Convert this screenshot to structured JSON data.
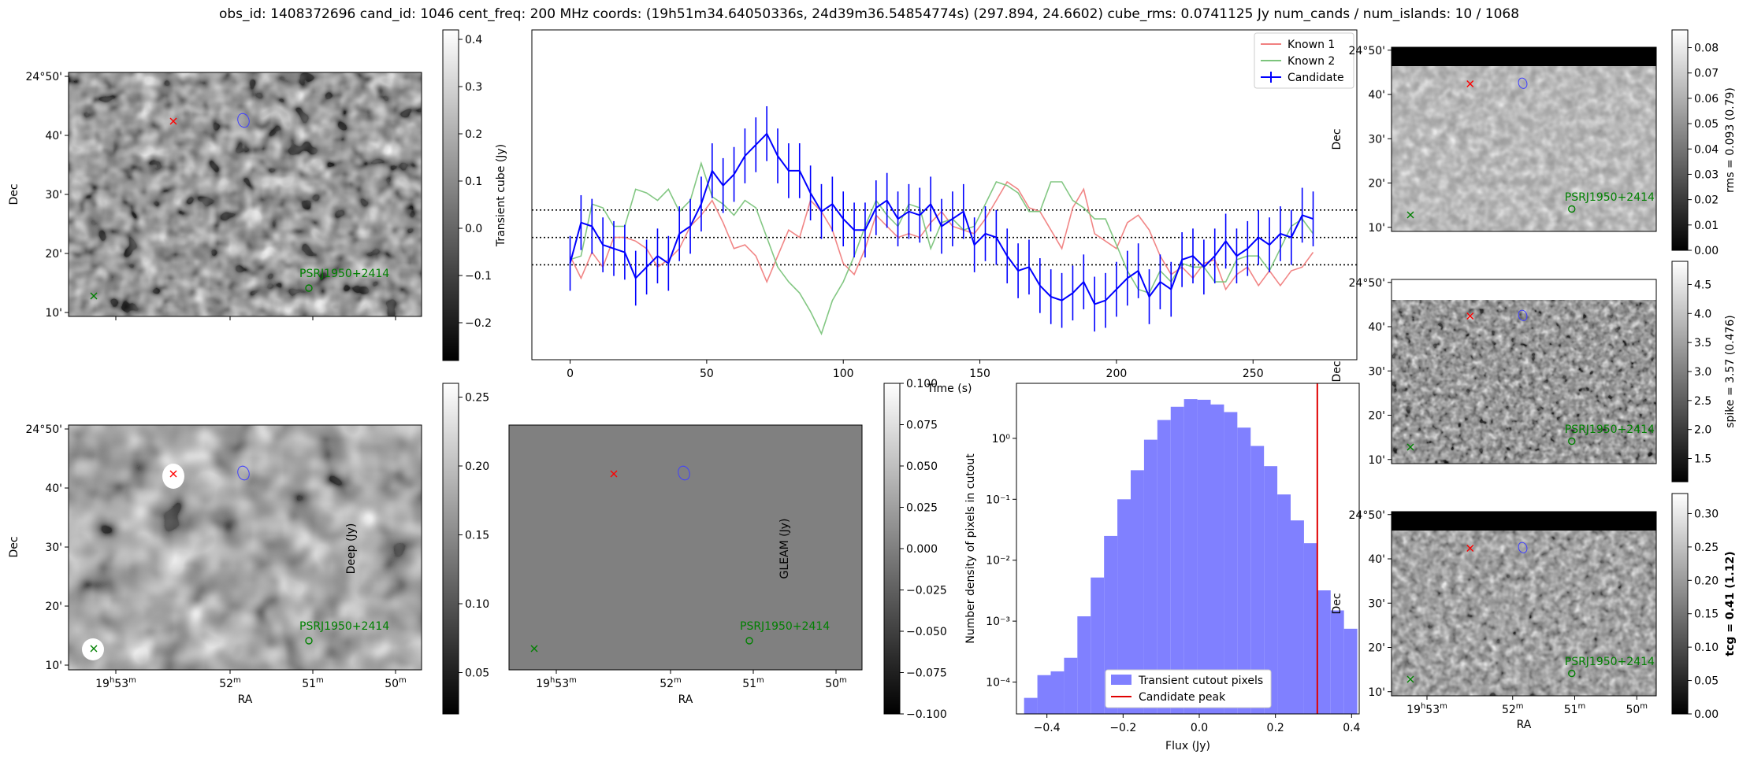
{
  "suptitle": "obs_id: 1408372696 cand_id: 1046 cent_freq: 200 MHz coords: (19h51m34.64050336s, 24d39m36.54854774s) (297.894, 24.6602) cube_rms: 0.0741125 Jy num_cands / num_islands: 10 / 1068",
  "colors": {
    "known1": "#f08080",
    "known2": "#7cc47c",
    "candidate": "#0000ff",
    "hist_fill": "#8080ff",
    "peak": "#e00000",
    "gleam_bg": "#808080",
    "marker_red": "#ff0000",
    "marker_green": "#008000",
    "ellipse": "#4040ff"
  },
  "sky_axes": {
    "dec_ticks": [
      "24°50'",
      "40'",
      "30'",
      "20'",
      "10'"
    ],
    "ra_ticks": [
      {
        "h": "19",
        "hs": "h",
        "m": "53",
        "ms": "m"
      },
      {
        "h": "",
        "hs": "",
        "m": "52",
        "ms": "m"
      },
      {
        "h": "",
        "hs": "",
        "m": "51",
        "ms": "m"
      },
      {
        "h": "",
        "hs": "",
        "m": "50",
        "ms": "m"
      }
    ],
    "dec_label": "Dec",
    "ra_label": "RA",
    "source_label": "PSRJ1950+2414"
  },
  "panels": {
    "transient": {
      "cbar_label": "Transient cube (Jy)",
      "cbar_ticks": [
        "0.4",
        "0.3",
        "0.2",
        "0.1",
        "0.0",
        "−0.1",
        "−0.2"
      ],
      "cbar_range": [
        -0.28,
        0.42
      ]
    },
    "deep": {
      "cbar_label": "Deep (Jy)",
      "cbar_ticks": [
        "0.25",
        "0.20",
        "0.15",
        "0.10",
        "0.05"
      ],
      "cbar_range": [
        0.02,
        0.26
      ]
    },
    "gleam": {
      "cbar_label": "GLEAM (Jy)",
      "cbar_ticks": [
        "0.100",
        "0.075",
        "0.050",
        "0.025",
        "0.000",
        "−0.025",
        "−0.050",
        "−0.075",
        "−0.100"
      ],
      "cbar_range": [
        -0.1,
        0.1
      ]
    },
    "rms": {
      "cbar_label": "rms = 0.093 (0.79)",
      "cbar_ticks": [
        "0.08",
        "0.07",
        "0.06",
        "0.05",
        "0.04",
        "0.03",
        "0.02",
        "0.01",
        "0.00"
      ],
      "cbar_range": [
        0.0,
        0.087
      ]
    },
    "spike": {
      "cbar_label": "spike = 3.57 (0.476)",
      "cbar_ticks": [
        "4.5",
        "4.0",
        "3.5",
        "3.0",
        "2.5",
        "2.0",
        "1.5"
      ],
      "cbar_range": [
        1.1,
        4.9
      ]
    },
    "tcg": {
      "cbar_label": "tcg = 0.41 (1.12)",
      "cbar_ticks": [
        "0.30",
        "0.25",
        "0.20",
        "0.15",
        "0.10",
        "0.05",
        "0.00"
      ],
      "cbar_range": [
        0.0,
        0.33
      ]
    }
  },
  "chart_data": [
    {
      "type": "line",
      "xlabel": "Time (s)",
      "ylabel": "",
      "xlim": [
        -14,
        288
      ],
      "ylim": [
        -0.33,
        0.56
      ],
      "x_ticks": [
        "0",
        "50",
        "100",
        "150",
        "200",
        "250"
      ],
      "hlines": [
        -0.074,
        0.0,
        0.074
      ],
      "legend": [
        "Known 1",
        "Known 2",
        "Candidate"
      ],
      "legend_loc": "upper right",
      "x": [
        0,
        4,
        8,
        12,
        16,
        20,
        24,
        28,
        32,
        36,
        40,
        44,
        48,
        52,
        56,
        60,
        64,
        68,
        72,
        76,
        80,
        84,
        88,
        92,
        96,
        100,
        104,
        108,
        112,
        116,
        120,
        124,
        128,
        132,
        136,
        140,
        144,
        148,
        152,
        156,
        160,
        164,
        168,
        172,
        176,
        180,
        184,
        188,
        192,
        196,
        200,
        204,
        208,
        212,
        216,
        220,
        224,
        228,
        232,
        236,
        240,
        244,
        248,
        252,
        256,
        260,
        264,
        268,
        272
      ],
      "series": [
        {
          "name": "Known 1",
          "values": [
            -0.05,
            -0.11,
            -0.04,
            -0.08,
            0.0,
            0.0,
            -0.01,
            -0.03,
            -0.08,
            -0.06,
            -0.03,
            0.03,
            0.06,
            0.1,
            0.04,
            -0.03,
            -0.02,
            -0.05,
            -0.12,
            -0.05,
            0.02,
            0.0,
            0.1,
            0.07,
            0.02,
            -0.07,
            -0.1,
            -0.03,
            0.06,
            0.03,
            0.0,
            0.01,
            0.0,
            0.04,
            0.07,
            0.03,
            0.02,
            0.01,
            0.05,
            0.1,
            0.15,
            0.13,
            0.08,
            0.07,
            0.02,
            -0.03,
            0.08,
            0.13,
            0.01,
            -0.01,
            -0.03,
            0.04,
            0.06,
            0.02,
            -0.05,
            -0.1,
            -0.08,
            -0.11,
            -0.07,
            -0.06,
            -0.14,
            -0.1,
            -0.08,
            -0.13,
            -0.09,
            -0.13,
            -0.09,
            -0.08,
            -0.04
          ]
        },
        {
          "name": "Known 2",
          "values": [
            -0.06,
            -0.05,
            0.09,
            0.08,
            0.03,
            0.03,
            0.13,
            0.12,
            0.1,
            0.13,
            0.07,
            0.1,
            0.2,
            0.11,
            0.09,
            0.06,
            0.1,
            0.08,
            0.0,
            -0.08,
            -0.12,
            -0.15,
            -0.2,
            -0.26,
            -0.17,
            -0.12,
            -0.05,
            0.03,
            0.1,
            0.06,
            0.03,
            0.09,
            0.08,
            -0.03,
            0.04,
            0.05,
            0.02,
            0.03,
            0.09,
            0.15,
            0.14,
            0.12,
            0.07,
            0.07,
            0.15,
            0.15,
            0.1,
            0.08,
            0.05,
            0.05,
            -0.02,
            -0.09,
            -0.14,
            -0.15,
            -0.09,
            -0.12,
            -0.07,
            -0.08,
            -0.08,
            -0.12,
            -0.12,
            -0.06,
            -0.05,
            -0.05,
            -0.09,
            -0.03,
            0.03,
            0.05,
            0.01
          ]
        },
        {
          "name": "Candidate",
          "values": [
            -0.07,
            0.04,
            0.03,
            -0.02,
            -0.03,
            -0.04,
            -0.11,
            -0.08,
            -0.05,
            -0.07,
            0.01,
            0.03,
            0.09,
            0.18,
            0.14,
            0.17,
            0.22,
            0.25,
            0.28,
            0.22,
            0.18,
            0.18,
            0.12,
            0.07,
            0.09,
            0.05,
            0.02,
            0.02,
            0.08,
            0.1,
            0.05,
            0.07,
            0.06,
            0.09,
            0.03,
            0.05,
            0.07,
            -0.02,
            0.01,
            0.0,
            -0.05,
            -0.09,
            -0.08,
            -0.13,
            -0.16,
            -0.17,
            -0.15,
            -0.12,
            -0.18,
            -0.17,
            -0.14,
            -0.11,
            -0.09,
            -0.16,
            -0.12,
            -0.14,
            -0.06,
            -0.05,
            -0.08,
            -0.05,
            -0.01,
            -0.05,
            -0.03,
            0.0,
            -0.02,
            0.01,
            0.0,
            0.06,
            0.05
          ],
          "error": 0.074
        }
      ]
    },
    {
      "type": "bar",
      "xlabel": "Flux (Jy)",
      "ylabel": "Number density of pixels in cutout",
      "yscale": "log",
      "xlim": [
        -0.48,
        0.42
      ],
      "ylim": [
        3e-05,
        8
      ],
      "x_ticks": [
        "−0.4",
        "−0.2",
        "0.0",
        "0.2",
        "0.4"
      ],
      "y_ticks": [
        "10⁰",
        "10⁻¹",
        "10⁻²",
        "10⁻³",
        "10⁻⁴"
      ],
      "bin_edges": [
        -0.46,
        -0.425,
        -0.39,
        -0.355,
        -0.32,
        -0.285,
        -0.25,
        -0.215,
        -0.18,
        -0.145,
        -0.11,
        -0.075,
        -0.04,
        -0.005,
        0.03,
        0.065,
        0.1,
        0.135,
        0.17,
        0.205,
        0.24,
        0.275,
        0.31,
        0.345,
        0.38,
        0.415
      ],
      "values": [
        5.5e-05,
        0.00013,
        0.00015,
        0.00025,
        0.0012,
        0.0052,
        0.025,
        0.1,
        0.3,
        0.95,
        2.0,
        3.3,
        4.4,
        4.3,
        3.6,
        2.7,
        1.5,
        0.75,
        0.35,
        0.12,
        0.045,
        0.019,
        0.0032,
        0.0015,
        0.00075
      ],
      "candidate_peak": 0.31,
      "legend": [
        "Transient cutout pixels",
        "Candidate peak"
      ],
      "legend_loc": "lower center"
    }
  ]
}
